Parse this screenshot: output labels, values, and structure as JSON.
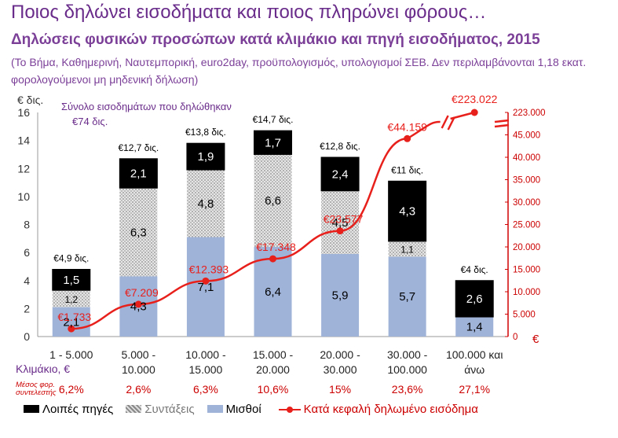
{
  "header": {
    "title": "Ποιος δηλώνει εισοδήματα και ποιος πληρώνει φόρους…",
    "subtitle": "Δηλώσεις φυσικών προσώπων κατά κλιμάκιο και πηγή εισοδήματος, 2015",
    "note": "(Το Βήμα, Καθημερινή, Ναυτεμπορική, euro2day,  προϋπολογισμός, υπολογισμοί ΣΕΒ. Δεν περιλαμβάνονται 1,18 εκατ. φορολογούμενοι μη μηδενική δήλωση)"
  },
  "colors": {
    "salaries": "#9fb3d9",
    "pensions": "#c9c9c9",
    "other": "#000000",
    "line": "#e8201c",
    "title": "#6a2c8a"
  },
  "chart_data": {
    "type": "bar",
    "stacked": true,
    "categories": [
      "1 - 5.000",
      "5.000 - 10.000",
      "10.000 - 15.000",
      "15.000 - 20.000",
      "20.000 - 30.000",
      "30.000 - 100.000",
      "100.000 και άνω"
    ],
    "category_lines": [
      [
        "1 - 5.000"
      ],
      [
        "5.000 -",
        "10.000"
      ],
      [
        "10.000 -",
        "15.000"
      ],
      [
        "15.000 -",
        "20.000"
      ],
      [
        "20.000 -",
        "30.000"
      ],
      [
        "30.000 -",
        "100.000"
      ],
      [
        "100.000 και",
        "άνω"
      ]
    ],
    "xlabel": "Κλιμάκιο, €",
    "ylabel": "€ δις.",
    "ylim": [
      0,
      16
    ],
    "yticks": [
      "0",
      "2",
      "4",
      "6",
      "8",
      "10",
      "12",
      "14",
      "16"
    ],
    "series": [
      {
        "name": "Μισθοί",
        "values": [
          2.1,
          4.3,
          7.1,
          6.4,
          5.9,
          5.7,
          1.4
        ],
        "labels": [
          "2,1",
          "4,3",
          "7,1",
          "6,4",
          "5,9",
          "5,7",
          "1,4"
        ]
      },
      {
        "name": "Συντάξεις",
        "values": [
          1.2,
          6.3,
          4.8,
          6.6,
          4.5,
          1.1,
          0
        ],
        "labels": [
          "1,2",
          "6,3",
          "4,8",
          "6,6",
          "4,5",
          "1,1",
          ""
        ]
      },
      {
        "name": "Λοιπές πηγές",
        "values": [
          1.5,
          2.1,
          1.9,
          1.7,
          2.4,
          4.3,
          2.6
        ],
        "labels": [
          "1,5",
          "2,1",
          "1,9",
          "1,7",
          "2,4",
          "4,3",
          "2,6"
        ]
      }
    ],
    "totals": [
      "€4,9 δις.",
      "€12,7 δις.",
      "€13,8 δις.",
      "€14,7 δις.",
      "€12,8 δις.",
      "€11 δις.",
      "€4 δις."
    ],
    "line_series": {
      "name": "Κατά κεφαλή δηλωμένο εισόδημα",
      "values": [
        1733,
        7209,
        12393,
        17348,
        23577,
        44159,
        223022
      ],
      "labels": [
        "€1.733",
        "€7.209",
        "€12.393",
        "€17.348",
        "€23.577",
        "€44.159",
        "€223.022"
      ]
    },
    "y2ticks": [
      "0",
      "5.000",
      "10.000",
      "15.000",
      "20.000",
      "25.000",
      "30.000",
      "35.000",
      "40.000",
      "45.000",
      "223.000"
    ],
    "y2_unit": "€",
    "tax_rate_label": "Μέσος φορ. συντελεστής",
    "tax_rates": [
      "6,2%",
      "2,6%",
      "6,3%",
      "10,6%",
      "15%",
      "23,6%",
      "27,1%"
    ],
    "annotation": "Σύνολο εισοδημάτων που δηλώθηκαν: €74 δις.",
    "legend": [
      "Λοιπές πηγές",
      "Συντάξεις",
      "Μισθοί",
      "Κατά κεφαλή δηλωμένο εισόδημα"
    ],
    "legend_position": "bottom"
  }
}
